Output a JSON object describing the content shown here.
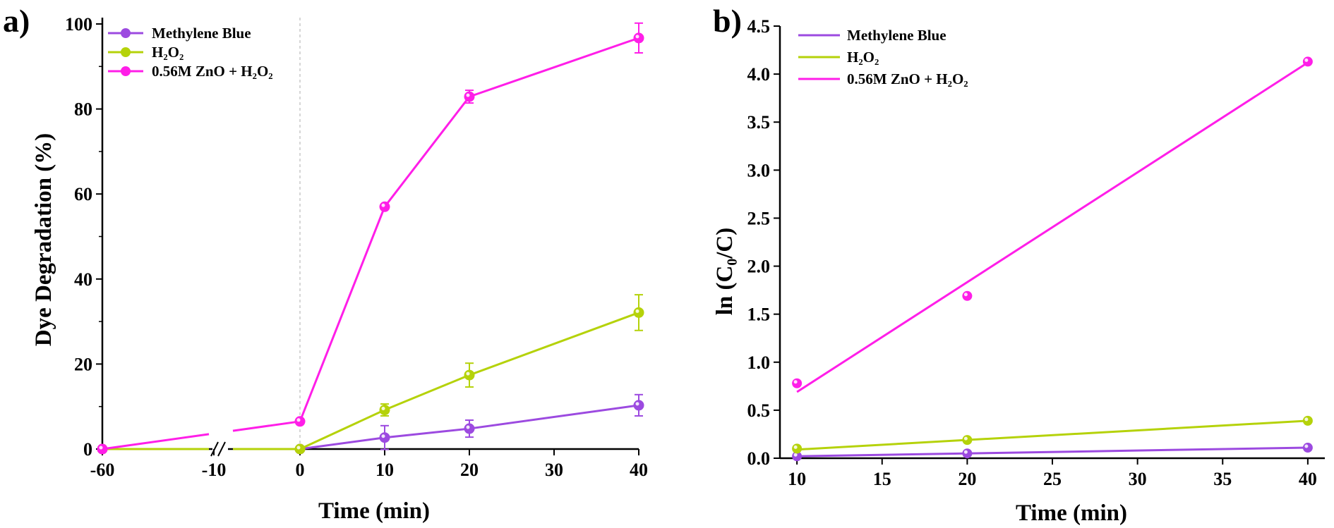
{
  "colors": {
    "methylene_blue": "#9c4ae0",
    "h2o2": "#b5d20a",
    "zno_h2o2": "#ff1ee8"
  },
  "chart_data": [
    {
      "type": "line",
      "panel_label": "a)",
      "xlabel": "Time (min)",
      "ylabel": "Dye Degradation (%)",
      "x_tick_labels": [
        "-60",
        "-10",
        "0",
        "10",
        "20",
        "30",
        "40"
      ],
      "y_tick_labels": [
        "0",
        "20",
        "40",
        "60",
        "80",
        "100"
      ],
      "ylim": [
        0,
        100
      ],
      "axis_break": "between -60 and -10",
      "dashed_reference_line_at_x": 0,
      "legend_position": "top-left",
      "x": [
        -60,
        0,
        10,
        20,
        40
      ],
      "series": [
        {
          "name": "Methylene Blue",
          "values": [
            0,
            0,
            2.7,
            4.8,
            10.3
          ],
          "error": [
            0,
            0,
            2.8,
            2.0,
            2.5
          ]
        },
        {
          "name": "H₂O₂",
          "values": [
            0,
            0,
            9.2,
            17.4,
            32.1
          ],
          "error": [
            0,
            0,
            1.4,
            2.8,
            4.2
          ]
        },
        {
          "name": "0.56M ZnO + H₂O₂",
          "values": [
            0,
            6.5,
            57.0,
            82.9,
            96.7
          ],
          "error": [
            0,
            0,
            0,
            1.5,
            3.5
          ]
        }
      ]
    },
    {
      "type": "scatter",
      "panel_label": "b)",
      "xlabel": "Time (min)",
      "ylabel": "ln (C₀/C)",
      "x_tick_labels": [
        "10",
        "15",
        "20",
        "25",
        "30",
        "35",
        "40"
      ],
      "y_tick_labels": [
        "0.0",
        "0.5",
        "1.0",
        "1.5",
        "2.0",
        "2.5",
        "3.0",
        "3.5",
        "4.0",
        "4.5"
      ],
      "xlim": [
        9,
        41
      ],
      "ylim": [
        0,
        4.5
      ],
      "legend_position": "top-left",
      "x": [
        10,
        20,
        40
      ],
      "series": [
        {
          "name": "Methylene Blue",
          "values": [
            0.02,
            0.05,
            0.11
          ],
          "fit": {
            "x": [
              10,
              40
            ],
            "y": [
              0.02,
              0.11
            ]
          }
        },
        {
          "name": "H₂O₂",
          "values": [
            0.1,
            0.19,
            0.39
          ],
          "fit": {
            "x": [
              10,
              40
            ],
            "y": [
              0.09,
              0.39
            ]
          }
        },
        {
          "name": "0.56M ZnO + H₂O₂",
          "values": [
            0.78,
            1.69,
            4.13
          ],
          "fit": {
            "x": [
              10,
              40
            ],
            "y": [
              0.69,
              4.12
            ]
          }
        }
      ]
    }
  ]
}
